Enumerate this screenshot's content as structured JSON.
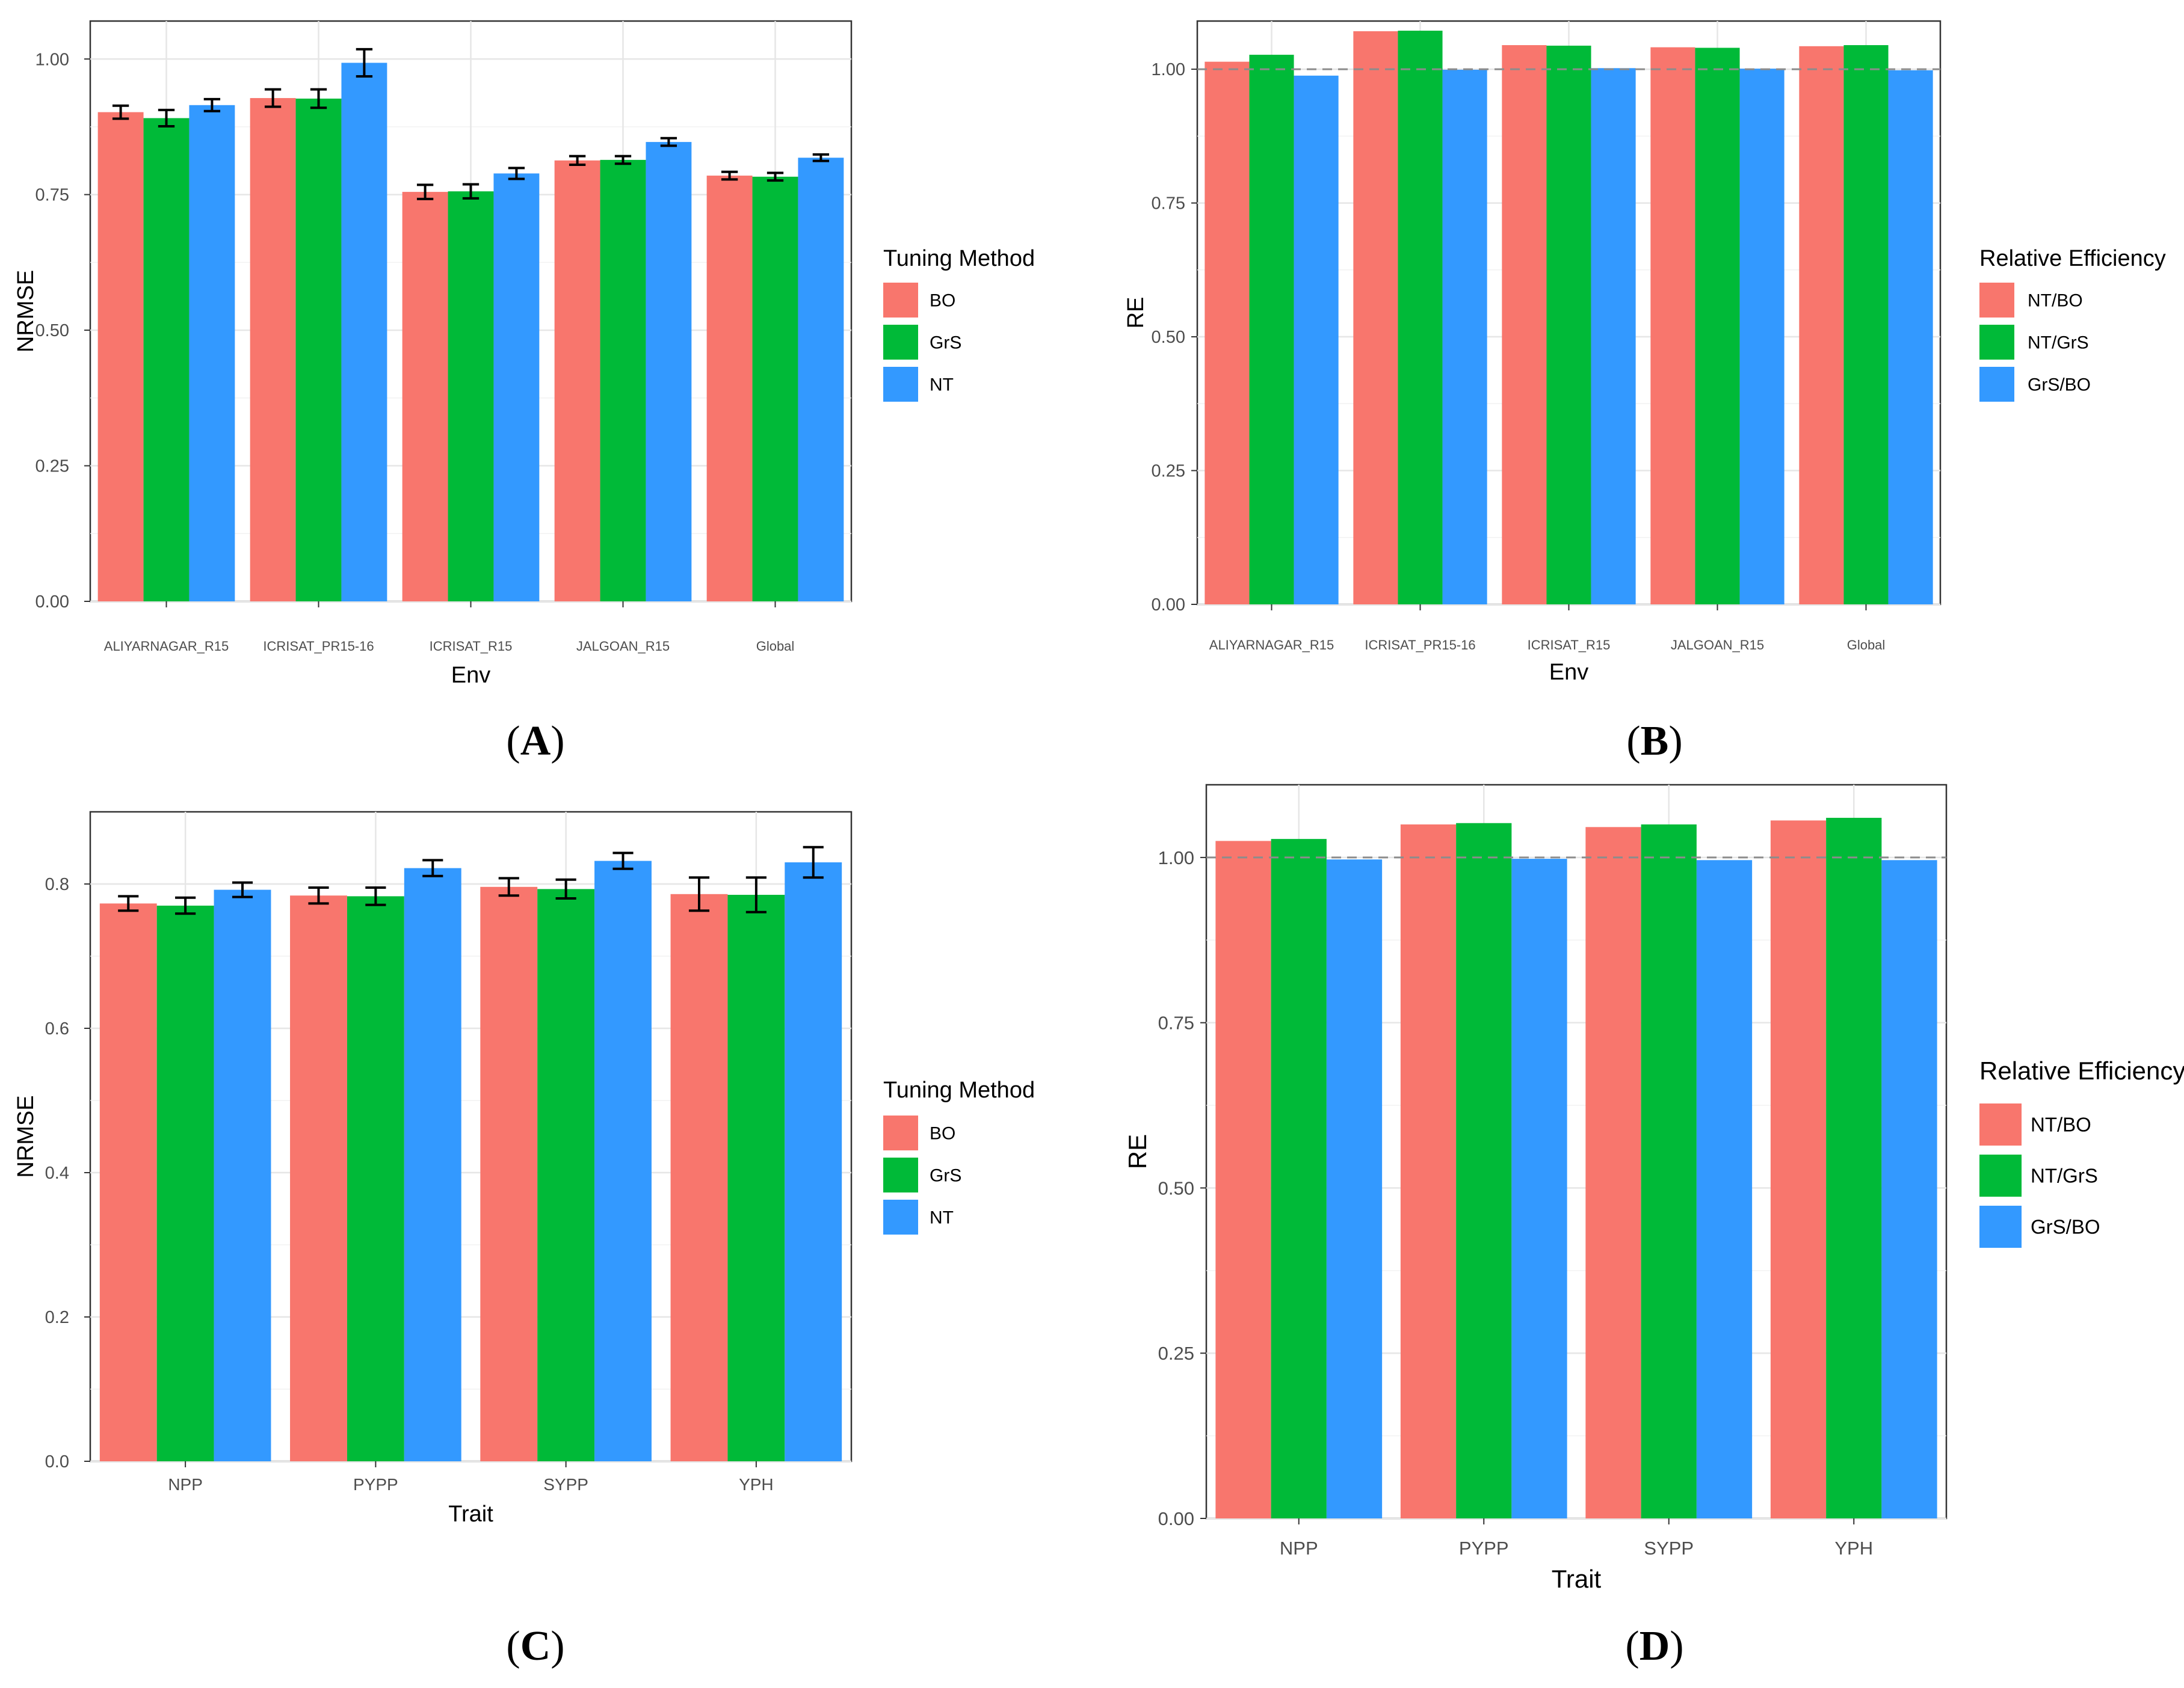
{
  "colors": {
    "bo": "#F8766D",
    "grs": "#00BA38",
    "nt": "#3399FF"
  },
  "chart_data": [
    {
      "panel": "A",
      "type": "bar",
      "xlabel": "Env",
      "ylabel": "NRMSE",
      "categories": [
        "ALIYARNAGAR_R15",
        "ICRISAT_PR15-16",
        "ICRISAT_R15",
        "JALGOAN_R15",
        "Global"
      ],
      "ylim": [
        0,
        1.07
      ],
      "yticks": [
        0,
        0.25,
        0.5,
        0.75,
        1.0
      ],
      "ytick_labels": [
        "0.00",
        "0.25",
        "0.50",
        "0.75",
        "1.00"
      ],
      "legend_title": "Tuning Method",
      "series": [
        {
          "name": "BO",
          "color": "#F8766D",
          "values": [
            0.902,
            0.928,
            0.755,
            0.813,
            0.785
          ],
          "errors": [
            0.012,
            0.016,
            0.013,
            0.008,
            0.007
          ]
        },
        {
          "name": "GrS",
          "color": "#00BA38",
          "values": [
            0.891,
            0.927,
            0.756,
            0.814,
            0.783
          ],
          "errors": [
            0.015,
            0.017,
            0.013,
            0.007,
            0.007
          ]
        },
        {
          "name": "NT",
          "color": "#3399FF",
          "values": [
            0.915,
            0.993,
            0.789,
            0.847,
            0.818
          ],
          "errors": [
            0.011,
            0.025,
            0.01,
            0.007,
            0.006
          ]
        }
      ],
      "caption": "A"
    },
    {
      "panel": "B",
      "type": "bar",
      "xlabel": "Env",
      "ylabel": "RE",
      "categories": [
        "ALIYARNAGAR_R15",
        "ICRISAT_PR15-16",
        "ICRISAT_R15",
        "JALGOAN_R15",
        "Global"
      ],
      "ylim": [
        0,
        1.09
      ],
      "yticks": [
        0,
        0.25,
        0.5,
        0.75,
        1.0
      ],
      "ytick_labels": [
        "0.00",
        "0.25",
        "0.50",
        "0.75",
        "1.00"
      ],
      "reference_line": 1.0,
      "legend_title": "Relative Efficiency",
      "series": [
        {
          "name": "NT/BO",
          "color": "#F8766D",
          "values": [
            1.014,
            1.071,
            1.045,
            1.041,
            1.043
          ]
        },
        {
          "name": "NT/GrS",
          "color": "#00BA38",
          "values": [
            1.027,
            1.072,
            1.044,
            1.04,
            1.045
          ]
        },
        {
          "name": "GrS/BO",
          "color": "#3399FF",
          "values": [
            0.988,
            0.999,
            1.002,
            1.001,
            0.998
          ]
        }
      ],
      "caption": "B"
    },
    {
      "panel": "C",
      "type": "bar",
      "xlabel": "Trait",
      "ylabel": "NRMSE",
      "categories": [
        "NPP",
        "PYPP",
        "SYPP",
        "YPH"
      ],
      "ylim": [
        0,
        0.9
      ],
      "yticks": [
        0,
        0.2,
        0.4,
        0.6,
        0.8
      ],
      "ytick_labels": [
        "0.0",
        "0.2",
        "0.4",
        "0.6",
        "0.8"
      ],
      "legend_title": "Tuning Method",
      "series": [
        {
          "name": "BO",
          "color": "#F8766D",
          "values": [
            0.773,
            0.784,
            0.796,
            0.786
          ],
          "errors": [
            0.01,
            0.011,
            0.012,
            0.023
          ]
        },
        {
          "name": "GrS",
          "color": "#00BA38",
          "values": [
            0.77,
            0.783,
            0.793,
            0.785
          ],
          "errors": [
            0.011,
            0.012,
            0.013,
            0.024
          ]
        },
        {
          "name": "NT",
          "color": "#3399FF",
          "values": [
            0.792,
            0.822,
            0.832,
            0.83
          ],
          "errors": [
            0.01,
            0.011,
            0.011,
            0.021
          ]
        }
      ],
      "caption": "C"
    },
    {
      "panel": "D",
      "type": "bar",
      "xlabel": "Trait",
      "ylabel": "RE",
      "categories": [
        "NPP",
        "PYPP",
        "SYPP",
        "YPH"
      ],
      "ylim": [
        0,
        1.11
      ],
      "yticks": [
        0,
        0.25,
        0.5,
        0.75,
        1.0
      ],
      "ytick_labels": [
        "0.00",
        "0.25",
        "0.50",
        "0.75",
        "1.00"
      ],
      "reference_line": 1.0,
      "legend_title": "Relative Efficiency",
      "series": [
        {
          "name": "NT/BO",
          "color": "#F8766D",
          "values": [
            1.025,
            1.05,
            1.046,
            1.056
          ]
        },
        {
          "name": "NT/GrS",
          "color": "#00BA38",
          "values": [
            1.028,
            1.052,
            1.05,
            1.06
          ]
        },
        {
          "name": "GrS/BO",
          "color": "#3399FF",
          "values": [
            0.997,
            0.998,
            0.996,
            0.996
          ]
        }
      ],
      "caption": "D"
    }
  ]
}
